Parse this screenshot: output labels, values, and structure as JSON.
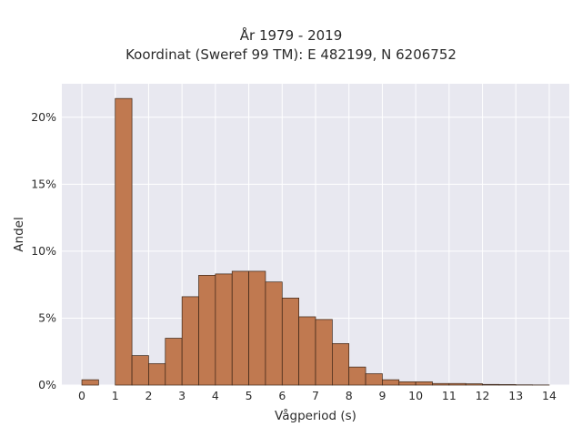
{
  "chart_data": {
    "type": "bar",
    "title": "År 1979 - 2019",
    "subtitle": "Koordinat (Sweref 99 TM): E 482199, N 6206752",
    "xlabel": "Vågperiod (s)",
    "ylabel": "Andel",
    "bin_width": 0.5,
    "x": [
      0,
      1,
      1.5,
      2,
      2.5,
      3,
      3.5,
      4,
      4.5,
      5,
      5.5,
      6,
      6.5,
      7,
      7.5,
      8,
      8.5,
      9,
      9.5,
      10,
      10.5,
      11,
      11.5,
      12,
      12.5,
      13,
      13.5
    ],
    "values": [
      0.4,
      21.4,
      2.2,
      1.6,
      3.5,
      6.6,
      8.2,
      8.3,
      8.5,
      8.5,
      7.7,
      6.5,
      5.1,
      4.9,
      3.1,
      1.35,
      0.85,
      0.4,
      0.25,
      0.25,
      0.12,
      0.12,
      0.1,
      0.05,
      0.04,
      0.02,
      0.01
    ],
    "xlim": [
      -0.6,
      14.6
    ],
    "ylim": [
      0,
      22.5
    ],
    "x_ticks": [
      "0",
      "1",
      "2",
      "3",
      "4",
      "5",
      "6",
      "7",
      "8",
      "9",
      "10",
      "11",
      "12",
      "13",
      "14"
    ],
    "y_ticks": [
      {
        "value": 0,
        "label": "0%"
      },
      {
        "value": 5,
        "label": "5%"
      },
      {
        "value": 10,
        "label": "10%"
      },
      {
        "value": 15,
        "label": "15%"
      },
      {
        "value": 20,
        "label": "20%"
      }
    ],
    "bar_color": "#c07950",
    "edge_color": "#3a2416",
    "plot_bg": "#e8e8f0",
    "grid": true
  }
}
